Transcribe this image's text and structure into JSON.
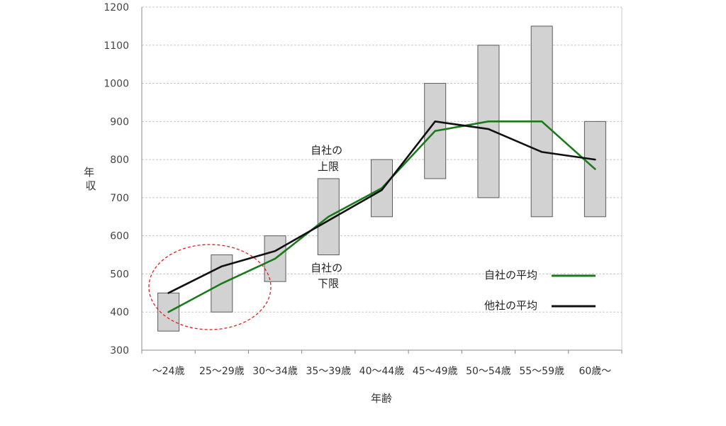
{
  "chart_data": {
    "type": "line",
    "xlabel": "年齢",
    "ylabel": "年収",
    "ylim": [
      300,
      1200
    ],
    "yticks": [
      300,
      400,
      500,
      600,
      700,
      800,
      900,
      1000,
      1100,
      1200
    ],
    "categories": [
      "〜24歳",
      "25〜29歳",
      "30〜34歳",
      "35〜39歳",
      "40〜44歳",
      "45〜49歳",
      "50〜54歳",
      "55〜59歳",
      "60歳〜"
    ],
    "ranges": [
      {
        "category": "〜24歳",
        "low": 350,
        "high": 450
      },
      {
        "category": "25〜29歳",
        "low": 400,
        "high": 550
      },
      {
        "category": "30〜34歳",
        "low": 480,
        "high": 600
      },
      {
        "category": "35〜39歳",
        "low": 550,
        "high": 750
      },
      {
        "category": "40〜44歳",
        "low": 650,
        "high": 800
      },
      {
        "category": "45〜49歳",
        "low": 750,
        "high": 1000
      },
      {
        "category": "50〜54歳",
        "low": 700,
        "high": 1100
      },
      {
        "category": "55〜59歳",
        "low": 650,
        "high": 1150
      },
      {
        "category": "60歳〜",
        "low": 650,
        "high": 900
      }
    ],
    "series": [
      {
        "name": "自社の平均",
        "color": "#1a7a1a",
        "values": [
          400,
          475,
          540,
          650,
          725,
          875,
          900,
          900,
          775
        ]
      },
      {
        "name": "他社の平均",
        "color": "#111111",
        "values": [
          450,
          520,
          560,
          640,
          720,
          900,
          880,
          820,
          800
        ]
      }
    ],
    "annotations": [
      {
        "lines": [
          "自社の",
          "上限"
        ]
      },
      {
        "lines": [
          "自社の",
          "下限"
        ]
      }
    ],
    "grid": true,
    "legend": "right",
    "box_fill": "#d3d2d2",
    "box_stroke": "#5a5a5a",
    "highlight_color": "#e02020"
  }
}
